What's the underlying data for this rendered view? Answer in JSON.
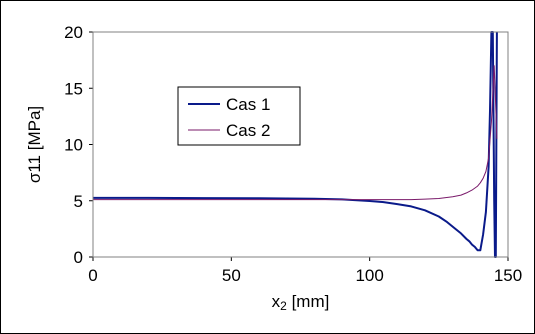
{
  "chart_data": {
    "type": "line",
    "xlabel_main": "x",
    "xlabel_sub": "2",
    "xlabel_unit": " [mm]",
    "ylabel": "σ11 [MPa]",
    "xlim": [
      0,
      150
    ],
    "ylim": [
      0,
      20
    ],
    "xticks": [
      "0",
      "50",
      "100",
      "150"
    ],
    "yticks": [
      "0",
      "5",
      "10",
      "15",
      "20"
    ],
    "grid": false,
    "legend_position": "upper-left-inside",
    "colors": {
      "cas1": "#0a1a8a",
      "cas2": "#7a1a6a"
    },
    "series": [
      {
        "name": "Cas 1",
        "x": [
          0,
          20,
          40,
          60,
          80,
          90,
          100,
          105,
          110,
          115,
          120,
          125,
          128,
          131,
          133,
          135,
          136,
          137,
          138,
          139,
          140,
          141,
          142,
          143,
          143.5,
          144,
          144.5,
          145,
          145.3,
          145.6,
          146
        ],
        "y": [
          5.25,
          5.25,
          5.24,
          5.22,
          5.18,
          5.12,
          4.98,
          4.88,
          4.7,
          4.5,
          4.15,
          3.6,
          3.1,
          2.5,
          2.1,
          1.6,
          1.4,
          1.1,
          0.9,
          0.6,
          0.6,
          2.0,
          4.0,
          8.0,
          13.0,
          20.0,
          20.0,
          5.0,
          0.0,
          0.0,
          20.0
        ]
      },
      {
        "name": "Cas 2",
        "x": [
          0,
          20,
          40,
          60,
          80,
          100,
          110,
          115,
          120,
          125,
          130,
          133,
          135,
          137,
          139,
          140,
          141,
          142,
          143,
          144,
          145,
          146
        ],
        "y": [
          5.1,
          5.1,
          5.1,
          5.1,
          5.1,
          5.1,
          5.1,
          5.1,
          5.15,
          5.2,
          5.35,
          5.5,
          5.7,
          5.95,
          6.3,
          6.6,
          7.0,
          7.6,
          8.8,
          12.0,
          17.0,
          10.5
        ]
      }
    ]
  }
}
